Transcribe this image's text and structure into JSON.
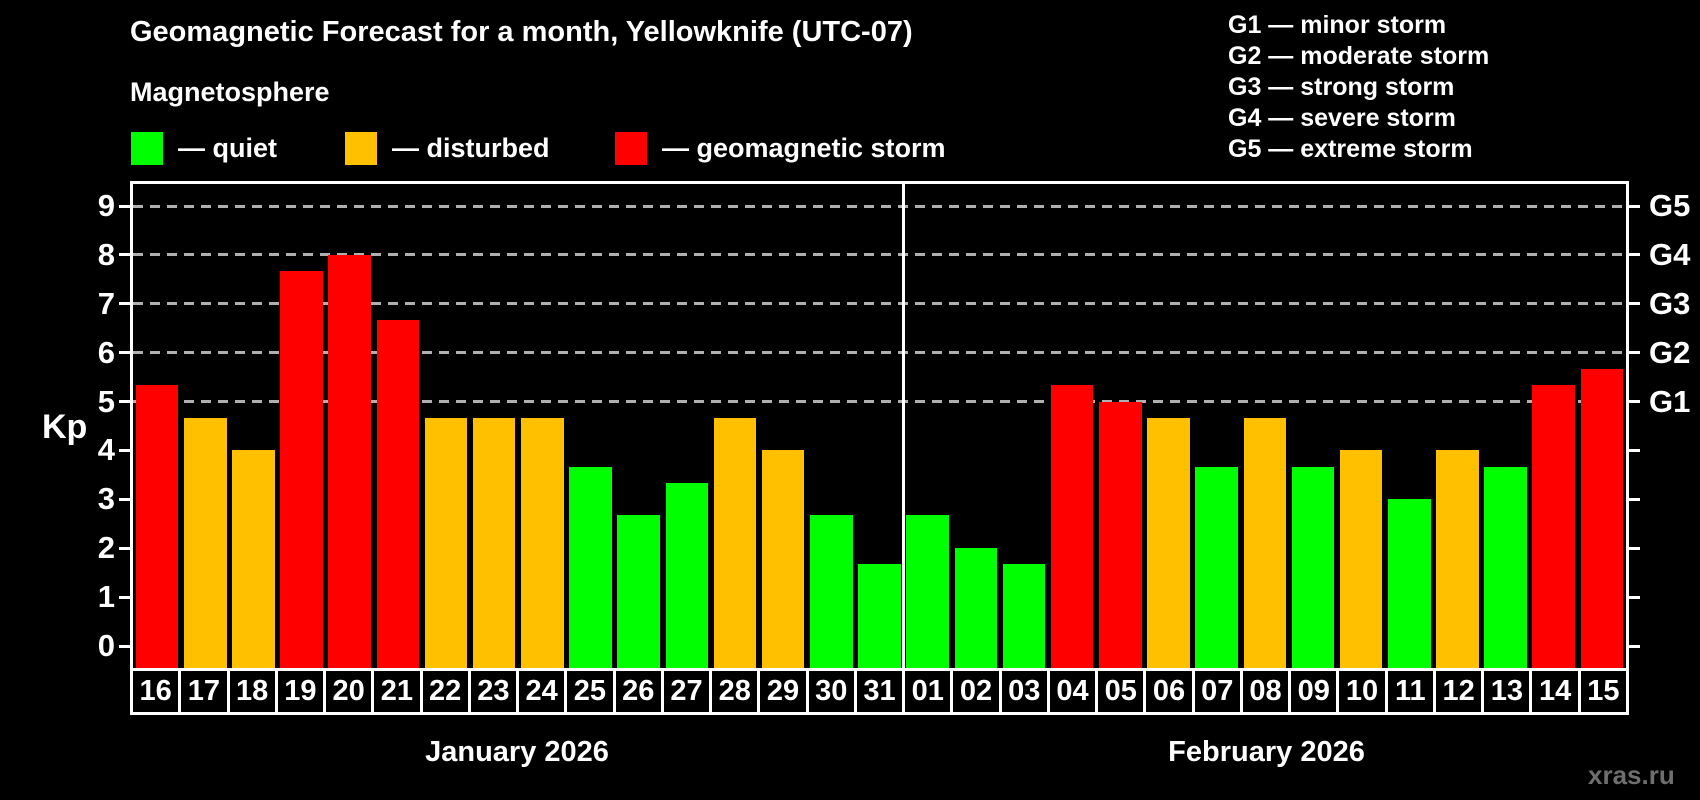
{
  "header": {
    "title": "Geomagnetic Forecast for a month, Yellowknife (UTC-07)"
  },
  "legend": {
    "heading": "Magnetosphere",
    "items": [
      {
        "status": "quiet",
        "label": "— quiet",
        "color": "#00ff00"
      },
      {
        "status": "disturbed",
        "label": "— disturbed",
        "color": "#ffc000"
      },
      {
        "status": "storm",
        "label": "— geomagnetic storm",
        "color": "#ff0000"
      }
    ]
  },
  "storm_scale": [
    {
      "level": "G1",
      "kp": 5,
      "label": "G1 — minor storm"
    },
    {
      "level": "G2",
      "kp": 6,
      "label": "G2 — moderate storm"
    },
    {
      "level": "G3",
      "kp": 7,
      "label": "G3 — strong storm"
    },
    {
      "level": "G4",
      "kp": 8,
      "label": "G4 — severe storm"
    },
    {
      "level": "G5",
      "kp": 9,
      "label": "G5 — extreme storm"
    }
  ],
  "axes": {
    "y_label": "Kp",
    "y_ticks": [
      0,
      1,
      2,
      3,
      4,
      5,
      6,
      7,
      8,
      9
    ],
    "right_tick_labels": [
      "G1",
      "G2",
      "G3",
      "G4",
      "G5"
    ]
  },
  "watermark": {
    "text": "xras.ru"
  },
  "chart_data": {
    "type": "bar",
    "title": "Geomagnetic Forecast for a month, Yellowknife (UTC-07)",
    "ylabel": "Kp",
    "ylim": [
      0,
      9
    ],
    "y_ticks": [
      0,
      1,
      2,
      3,
      4,
      5,
      6,
      7,
      8,
      9
    ],
    "gridlines_at": [
      5,
      6,
      7,
      8,
      9
    ],
    "grid": "dashed, levels 5-9 only",
    "right_axis": {
      "labels": [
        "G1",
        "G2",
        "G3",
        "G4",
        "G5"
      ],
      "at_kp": [
        5,
        6,
        7,
        8,
        9
      ]
    },
    "color_map": {
      "quiet": "#00ff00",
      "disturbed": "#ffc000",
      "storm": "#ff0000"
    },
    "months": [
      {
        "name": "January 2026",
        "days": [
          {
            "day": "16",
            "kp": 5.33,
            "status": "storm"
          },
          {
            "day": "17",
            "kp": 4.67,
            "status": "disturbed"
          },
          {
            "day": "18",
            "kp": 4.0,
            "status": "disturbed"
          },
          {
            "day": "19",
            "kp": 7.67,
            "status": "storm"
          },
          {
            "day": "20",
            "kp": 8.0,
            "status": "storm"
          },
          {
            "day": "21",
            "kp": 6.67,
            "status": "storm"
          },
          {
            "day": "22",
            "kp": 4.67,
            "status": "disturbed"
          },
          {
            "day": "23",
            "kp": 4.67,
            "status": "disturbed"
          },
          {
            "day": "24",
            "kp": 4.67,
            "status": "disturbed"
          },
          {
            "day": "25",
            "kp": 3.67,
            "status": "quiet"
          },
          {
            "day": "26",
            "kp": 2.67,
            "status": "quiet"
          },
          {
            "day": "27",
            "kp": 3.33,
            "status": "quiet"
          },
          {
            "day": "28",
            "kp": 4.67,
            "status": "disturbed"
          },
          {
            "day": "29",
            "kp": 4.0,
            "status": "disturbed"
          },
          {
            "day": "30",
            "kp": 2.67,
            "status": "quiet"
          },
          {
            "day": "31",
            "kp": 1.67,
            "status": "quiet"
          }
        ]
      },
      {
        "name": "February 2026",
        "days": [
          {
            "day": "01",
            "kp": 2.67,
            "status": "quiet"
          },
          {
            "day": "02",
            "kp": 2.0,
            "status": "quiet"
          },
          {
            "day": "03",
            "kp": 1.67,
            "status": "quiet"
          },
          {
            "day": "04",
            "kp": 5.33,
            "status": "storm"
          },
          {
            "day": "05",
            "kp": 5.0,
            "status": "storm"
          },
          {
            "day": "06",
            "kp": 4.67,
            "status": "disturbed"
          },
          {
            "day": "07",
            "kp": 3.67,
            "status": "quiet"
          },
          {
            "day": "08",
            "kp": 4.67,
            "status": "disturbed"
          },
          {
            "day": "09",
            "kp": 3.67,
            "status": "quiet"
          },
          {
            "day": "10",
            "kp": 4.0,
            "status": "disturbed"
          },
          {
            "day": "11",
            "kp": 3.0,
            "status": "quiet"
          },
          {
            "day": "12",
            "kp": 4.0,
            "status": "disturbed"
          },
          {
            "day": "13",
            "kp": 3.67,
            "status": "quiet"
          },
          {
            "day": "14",
            "kp": 5.33,
            "status": "storm"
          },
          {
            "day": "15",
            "kp": 5.67,
            "status": "storm"
          }
        ]
      }
    ]
  }
}
